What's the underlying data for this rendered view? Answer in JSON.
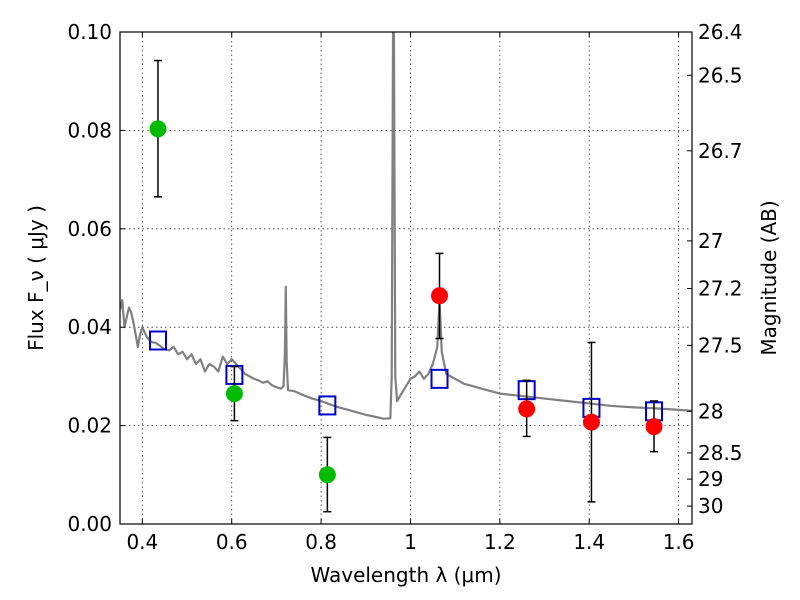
{
  "chart_data": {
    "type": "scatter",
    "xlabel": "Wavelength  λ (μm)",
    "ylabel": "Flux  F_ν  ( μJy )",
    "ylabel_right": "Magnitude (AB)",
    "xlim": [
      0.35,
      1.63
    ],
    "ylim": [
      0.0,
      0.1
    ],
    "x_ticks": [
      0.4,
      0.6,
      0.8,
      1.0,
      1.2,
      1.4,
      1.6
    ],
    "x_tick_labels": [
      "0.4",
      "0.6",
      "0.8",
      "1",
      "1.2",
      "1.4",
      "1.6"
    ],
    "y_ticks": [
      0.0,
      0.02,
      0.04,
      0.06,
      0.08,
      0.1
    ],
    "y_tick_labels": [
      "0.00",
      "0.02",
      "0.04",
      "0.06",
      "0.08",
      "0.10"
    ],
    "right_tick_labels": [
      "26.4",
      "26.5",
      "26.7",
      "27",
      "27.2",
      "27.5",
      "28",
      "28.5",
      "29",
      "30"
    ],
    "right_tick_values": [
      26.4,
      26.5,
      26.7,
      27.0,
      27.2,
      27.5,
      28.0,
      28.5,
      29.0,
      30.0
    ],
    "grid": true,
    "series": [
      {
        "marker": "filled-circle",
        "color": "#00bb00",
        "points": [
          {
            "x": 0.435,
            "y": 0.0803,
            "yerr_low": 0.0665,
            "yerr_high": 0.0942
          },
          {
            "x": 0.606,
            "y": 0.0265,
            "yerr_low": 0.021,
            "yerr_high": 0.032
          },
          {
            "x": 0.814,
            "y": 0.01,
            "yerr_low": 0.0025,
            "yerr_high": 0.0176
          }
        ]
      },
      {
        "marker": "filled-circle",
        "color": "#ff0000",
        "points": [
          {
            "x": 1.065,
            "y": 0.0464,
            "yerr_low": 0.0377,
            "yerr_high": 0.055
          },
          {
            "x": 1.26,
            "y": 0.0234,
            "yerr_low": 0.0178,
            "yerr_high": 0.0292
          },
          {
            "x": 1.405,
            "y": 0.0207,
            "yerr_low": 0.0045,
            "yerr_high": 0.0369
          },
          {
            "x": 1.545,
            "y": 0.0198,
            "yerr_low": 0.0147,
            "yerr_high": 0.025
          }
        ]
      },
      {
        "marker": "open-square",
        "color": "#0000cc",
        "points": [
          {
            "x": 0.435,
            "y": 0.0373
          },
          {
            "x": 0.606,
            "y": 0.0303
          },
          {
            "x": 0.814,
            "y": 0.0241
          },
          {
            "x": 1.065,
            "y": 0.0295
          },
          {
            "x": 1.26,
            "y": 0.0272
          },
          {
            "x": 1.405,
            "y": 0.0236
          },
          {
            "x": 1.545,
            "y": 0.0229
          }
        ]
      },
      {
        "marker": "line",
        "color": "#808080",
        "points": [
          {
            "x": 0.35,
            "y": 0.0435
          },
          {
            "x": 0.355,
            "y": 0.0455
          },
          {
            "x": 0.36,
            "y": 0.04
          },
          {
            "x": 0.365,
            "y": 0.042
          },
          {
            "x": 0.37,
            "y": 0.044
          },
          {
            "x": 0.375,
            "y": 0.043
          },
          {
            "x": 0.38,
            "y": 0.041
          },
          {
            "x": 0.385,
            "y": 0.0385
          },
          {
            "x": 0.39,
            "y": 0.036
          },
          {
            "x": 0.395,
            "y": 0.0385
          },
          {
            "x": 0.4,
            "y": 0.04
          },
          {
            "x": 0.41,
            "y": 0.038
          },
          {
            "x": 0.42,
            "y": 0.037
          },
          {
            "x": 0.43,
            "y": 0.0368
          },
          {
            "x": 0.44,
            "y": 0.0362
          },
          {
            "x": 0.45,
            "y": 0.0355
          },
          {
            "x": 0.46,
            "y": 0.0353
          },
          {
            "x": 0.47,
            "y": 0.036
          },
          {
            "x": 0.48,
            "y": 0.0345
          },
          {
            "x": 0.49,
            "y": 0.035
          },
          {
            "x": 0.5,
            "y": 0.0335
          },
          {
            "x": 0.51,
            "y": 0.0345
          },
          {
            "x": 0.52,
            "y": 0.0325
          },
          {
            "x": 0.53,
            "y": 0.0335
          },
          {
            "x": 0.54,
            "y": 0.031
          },
          {
            "x": 0.55,
            "y": 0.0325
          },
          {
            "x": 0.56,
            "y": 0.032
          },
          {
            "x": 0.57,
            "y": 0.031
          },
          {
            "x": 0.58,
            "y": 0.034
          },
          {
            "x": 0.59,
            "y": 0.0325
          },
          {
            "x": 0.6,
            "y": 0.0335
          },
          {
            "x": 0.61,
            "y": 0.0325
          },
          {
            "x": 0.62,
            "y": 0.0315
          },
          {
            "x": 0.63,
            "y": 0.0305
          },
          {
            "x": 0.64,
            "y": 0.03
          },
          {
            "x": 0.65,
            "y": 0.0295
          },
          {
            "x": 0.66,
            "y": 0.0292
          },
          {
            "x": 0.67,
            "y": 0.0287
          },
          {
            "x": 0.68,
            "y": 0.029
          },
          {
            "x": 0.69,
            "y": 0.0282
          },
          {
            "x": 0.7,
            "y": 0.0278
          },
          {
            "x": 0.71,
            "y": 0.0275
          },
          {
            "x": 0.716,
            "y": 0.028
          },
          {
            "x": 0.719,
            "y": 0.0345
          },
          {
            "x": 0.721,
            "y": 0.0482
          },
          {
            "x": 0.723,
            "y": 0.033
          },
          {
            "x": 0.726,
            "y": 0.0272
          },
          {
            "x": 0.74,
            "y": 0.027
          },
          {
            "x": 0.76,
            "y": 0.0262
          },
          {
            "x": 0.78,
            "y": 0.0255
          },
          {
            "x": 0.8,
            "y": 0.025
          },
          {
            "x": 0.82,
            "y": 0.0243
          },
          {
            "x": 0.84,
            "y": 0.0237
          },
          {
            "x": 0.86,
            "y": 0.0232
          },
          {
            "x": 0.88,
            "y": 0.0227
          },
          {
            "x": 0.9,
            "y": 0.0222
          },
          {
            "x": 0.92,
            "y": 0.0218
          },
          {
            "x": 0.94,
            "y": 0.0214
          },
          {
            "x": 0.955,
            "y": 0.0215
          },
          {
            "x": 0.958,
            "y": 0.03
          },
          {
            "x": 0.961,
            "y": 0.1
          },
          {
            "x": 0.963,
            "y": 0.1
          },
          {
            "x": 0.966,
            "y": 0.03
          },
          {
            "x": 0.97,
            "y": 0.025
          },
          {
            "x": 0.98,
            "y": 0.0265
          },
          {
            "x": 0.99,
            "y": 0.028
          },
          {
            "x": 1.0,
            "y": 0.0295
          },
          {
            "x": 1.01,
            "y": 0.03
          },
          {
            "x": 1.02,
            "y": 0.031
          },
          {
            "x": 1.03,
            "y": 0.0295
          },
          {
            "x": 1.04,
            "y": 0.0305
          },
          {
            "x": 1.05,
            "y": 0.0325
          },
          {
            "x": 1.06,
            "y": 0.036
          },
          {
            "x": 1.065,
            "y": 0.0455
          },
          {
            "x": 1.07,
            "y": 0.035
          },
          {
            "x": 1.08,
            "y": 0.0305
          },
          {
            "x": 1.1,
            "y": 0.0295
          },
          {
            "x": 1.12,
            "y": 0.0285
          },
          {
            "x": 1.14,
            "y": 0.028
          },
          {
            "x": 1.16,
            "y": 0.0275
          },
          {
            "x": 1.18,
            "y": 0.027
          },
          {
            "x": 1.2,
            "y": 0.0265
          },
          {
            "x": 1.25,
            "y": 0.026
          },
          {
            "x": 1.3,
            "y": 0.0255
          },
          {
            "x": 1.35,
            "y": 0.025
          },
          {
            "x": 1.4,
            "y": 0.0245
          },
          {
            "x": 1.45,
            "y": 0.024
          },
          {
            "x": 1.5,
            "y": 0.0237
          },
          {
            "x": 1.55,
            "y": 0.0235
          },
          {
            "x": 1.6,
            "y": 0.0232
          },
          {
            "x": 1.63,
            "y": 0.023
          }
        ]
      }
    ]
  }
}
